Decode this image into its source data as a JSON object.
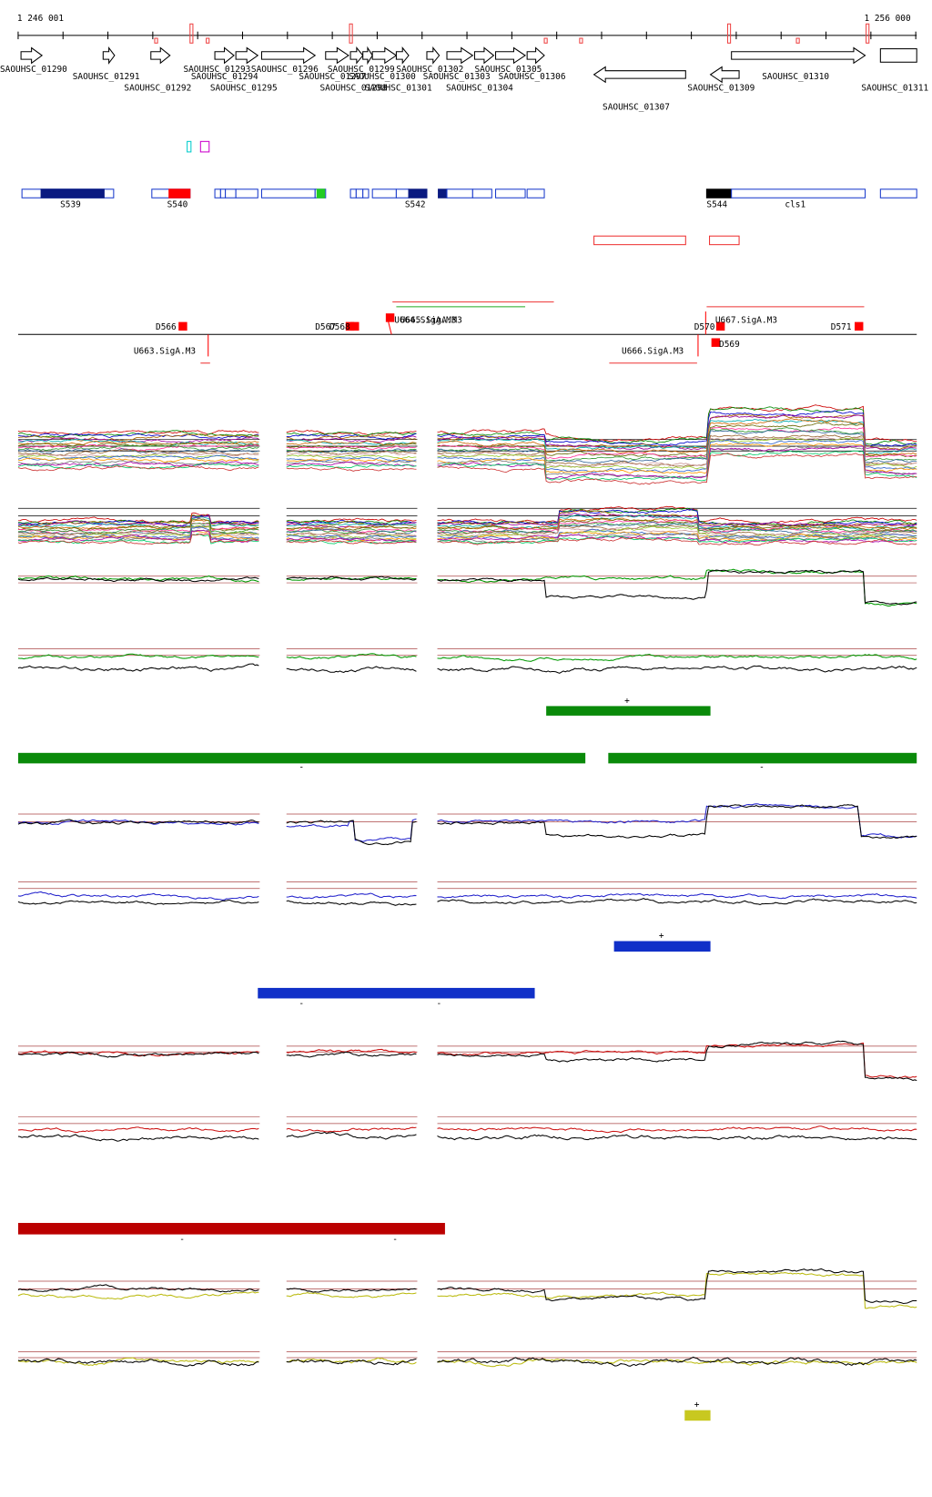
{
  "ruler": {
    "start": "1 246 001",
    "end": "1 256 000"
  },
  "genes": [
    "SAOUHSC_01290",
    "SAOUHSC_01291",
    "SAOUHSC_01292",
    "SAOUHSC_01293",
    "SAOUHSC_01294",
    "SAOUHSC_01295",
    "SAOUHSC_01296",
    "SAOUHSC_01297",
    "SAOUHSC_01298",
    "SAOUHSC_01299",
    "SAOUHSC_01300",
    "SAOUHSC_01301",
    "SAOUHSC_01302",
    "SAOUHSC_01303",
    "SAOUHSC_01304",
    "SAOUHSC_01305",
    "SAOUHSC_01306",
    "SAOUHSC_01307",
    "SAOUHSC_01309",
    "SAOUHSC_01310",
    "SAOUHSC_01311"
  ],
  "segments": [
    "S539",
    "S540",
    "S542",
    "S544",
    "cls1"
  ],
  "features": [
    "D566",
    "D567",
    "D568",
    "U664.SigA.M3",
    "U665.SigA.M3",
    "U663.SigA.M3",
    "D570",
    "D569",
    "U667.SigA.M3",
    "D571",
    "U666.SigA.M3"
  ],
  "strand_marks": [
    "+",
    "-",
    "-",
    "+",
    "-",
    "-",
    "-",
    "-",
    "+"
  ]
}
